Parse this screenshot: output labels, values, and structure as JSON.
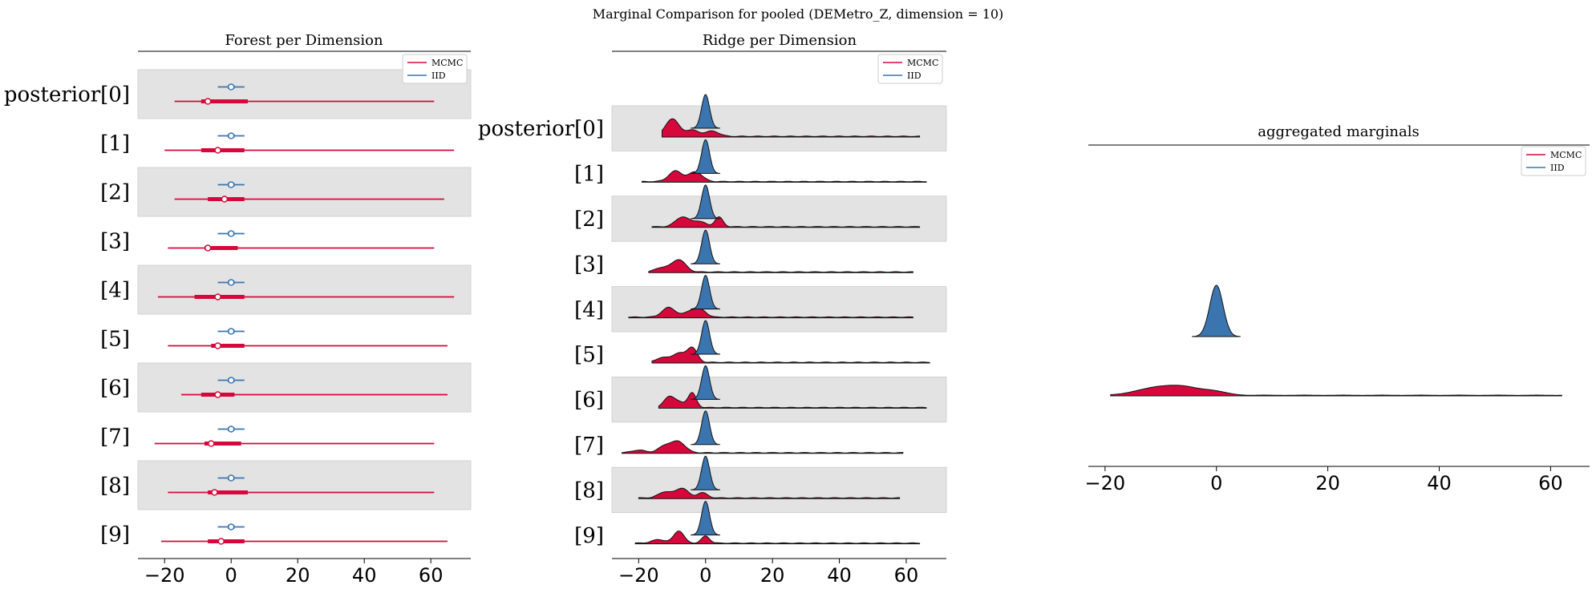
{
  "suptitle": "Marginal Comparison for pooled (DEMetro_Z, dimension = 10)",
  "colors": {
    "mcmc": "#d6083b",
    "iid": "#3b75af",
    "band": "#e3e3e3"
  },
  "legend": {
    "mcmc": "MCMC",
    "iid": "IID"
  },
  "chart_data": [
    {
      "type": "forest",
      "title": "Forest per Dimension",
      "row_labels": [
        "posterior[0]",
        "[1]",
        "[2]",
        "[3]",
        "[4]",
        "[5]",
        "[6]",
        "[7]",
        "[8]",
        "[9]"
      ],
      "xticks": [
        -20,
        0,
        20,
        40,
        60
      ],
      "xlim": [
        -28,
        72
      ],
      "series": [
        {
          "name": "MCMC",
          "median": [
            -7,
            -4,
            -2,
            -7,
            -4,
            -4,
            -4,
            -6,
            -5,
            -3
          ],
          "hdi_inner": [
            [
              -9,
              5
            ],
            [
              -9,
              4
            ],
            [
              -7,
              4
            ],
            [
              -8,
              2
            ],
            [
              -11,
              4
            ],
            [
              -6,
              4
            ],
            [
              -9,
              1
            ],
            [
              -8,
              3
            ],
            [
              -7,
              5
            ],
            [
              -7,
              4
            ]
          ],
          "hdi_outer": [
            [
              -17,
              61
            ],
            [
              -20,
              67
            ],
            [
              -17,
              64
            ],
            [
              -19,
              61
            ],
            [
              -22,
              67
            ],
            [
              -19,
              65
            ],
            [
              -15,
              65
            ],
            [
              -23,
              61
            ],
            [
              -19,
              61
            ],
            [
              -21,
              65
            ]
          ]
        },
        {
          "name": "IID",
          "median": [
            0,
            0,
            0,
            0,
            0,
            0,
            0,
            0,
            0,
            0
          ],
          "hdi_inner": [
            [
              -1,
              1
            ],
            [
              -1,
              1
            ],
            [
              -1,
              1
            ],
            [
              -1,
              1
            ],
            [
              -1,
              1
            ],
            [
              -1,
              1
            ],
            [
              -1,
              1
            ],
            [
              -1,
              1
            ],
            [
              -1,
              1
            ],
            [
              -1,
              1
            ]
          ],
          "hdi_outer": [
            [
              -4,
              4
            ],
            [
              -4,
              4
            ],
            [
              -4,
              4
            ],
            [
              -4,
              4
            ],
            [
              -4,
              4
            ],
            [
              -4,
              4
            ],
            [
              -4,
              4
            ],
            [
              -4,
              4
            ],
            [
              -4,
              4
            ],
            [
              -4,
              4
            ]
          ]
        }
      ]
    },
    {
      "type": "ridge",
      "title": "Ridge per Dimension",
      "row_labels": [
        "posterior[0]",
        "[1]",
        "[2]",
        "[3]",
        "[4]",
        "[5]",
        "[6]",
        "[7]",
        "[8]",
        "[9]"
      ],
      "xticks": [
        -20,
        0,
        20,
        40,
        60
      ],
      "xlim": [
        -28,
        72
      ],
      "mcmc_range": [
        [
          -13,
          64
        ],
        [
          -19,
          66
        ],
        [
          -16,
          64
        ],
        [
          -17,
          62
        ],
        [
          -23,
          62
        ],
        [
          -16,
          67
        ],
        [
          -14,
          66
        ],
        [
          -25,
          59
        ],
        [
          -20,
          58
        ],
        [
          -21,
          64
        ]
      ],
      "mcmc_peaks": [
        [
          [
            -10,
            1.0,
            2
          ],
          [
            -4,
            0.35,
            2
          ],
          [
            2,
            0.3,
            2
          ]
        ],
        [
          [
            -9,
            0.6,
            2
          ],
          [
            -3,
            0.55,
            2
          ]
        ],
        [
          [
            -7,
            0.55,
            2
          ],
          [
            4,
            0.55,
            1.2
          ],
          [
            -2,
            0.3,
            2
          ]
        ],
        [
          [
            -8,
            0.7,
            2
          ],
          [
            -13,
            0.25,
            2
          ]
        ],
        [
          [
            -11,
            0.55,
            2
          ],
          [
            -4,
            0.4,
            2
          ],
          [
            -1,
            0.3,
            1.5
          ]
        ],
        [
          [
            -4,
            0.8,
            1.5
          ],
          [
            -8,
            0.5,
            2
          ],
          [
            -13,
            0.25,
            2
          ]
        ],
        [
          [
            -11,
            0.55,
            1.5
          ],
          [
            -4,
            0.8,
            1.2
          ],
          [
            -8,
            0.3,
            2
          ]
        ],
        [
          [
            -8,
            0.6,
            2
          ],
          [
            -12,
            0.4,
            2
          ],
          [
            -20,
            0.15,
            2
          ]
        ],
        [
          [
            -7,
            0.55,
            1.8
          ],
          [
            -12,
            0.35,
            2
          ],
          [
            -1,
            0.3,
            1.5
          ]
        ],
        [
          [
            -8,
            0.7,
            1.5
          ],
          [
            0,
            0.4,
            1.2
          ],
          [
            -14,
            0.2,
            2
          ]
        ]
      ],
      "iid_sd": 1.2
    },
    {
      "type": "density",
      "title": "aggregated marginals",
      "xticks": [
        -20,
        0,
        20,
        40,
        60
      ],
      "xlim": [
        -23,
        67
      ],
      "mcmc_range": [
        -19,
        62
      ],
      "mcmc_peaks": [
        [
          -10,
          0.5,
          2.5
        ],
        [
          -6,
          0.55,
          2.5
        ],
        [
          -1,
          0.35,
          2.5
        ],
        [
          -14,
          0.25,
          2.5
        ]
      ],
      "iid_sd": 1.2
    }
  ]
}
